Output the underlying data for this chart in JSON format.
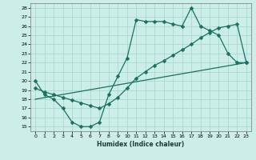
{
  "xlabel": "Humidex (Indice chaleur)",
  "bg_color": "#cceee8",
  "grid_color": "#aad8d2",
  "line_color": "#1a7060",
  "xlim": [
    -0.5,
    23.5
  ],
  "ylim": [
    14.5,
    28.5
  ],
  "xticks": [
    0,
    1,
    2,
    3,
    4,
    5,
    6,
    7,
    8,
    9,
    10,
    11,
    12,
    13,
    14,
    15,
    16,
    17,
    18,
    19,
    20,
    21,
    22,
    23
  ],
  "yticks": [
    15,
    16,
    17,
    18,
    19,
    20,
    21,
    22,
    23,
    24,
    25,
    26,
    27,
    28
  ],
  "line1_x": [
    0,
    1,
    2,
    3,
    4,
    5,
    6,
    7,
    8,
    9,
    10,
    11,
    12,
    13,
    14,
    15,
    16,
    17,
    18,
    19,
    20,
    21,
    22,
    23
  ],
  "line1_y": [
    20.0,
    18.5,
    18.0,
    17.0,
    15.5,
    15.0,
    15.0,
    15.5,
    18.5,
    20.5,
    22.5,
    26.7,
    26.5,
    26.5,
    26.5,
    26.2,
    26.0,
    28.0,
    26.0,
    25.5,
    25.0,
    23.0,
    22.0,
    22.0
  ],
  "line2_x": [
    0,
    1,
    2,
    3,
    4,
    5,
    6,
    7,
    8,
    9,
    10,
    11,
    12,
    13,
    14,
    15,
    16,
    17,
    18,
    19,
    20,
    21,
    22,
    23
  ],
  "line2_y": [
    19.2,
    18.8,
    18.5,
    18.2,
    17.9,
    17.6,
    17.3,
    17.0,
    17.5,
    18.2,
    19.2,
    20.3,
    21.0,
    21.7,
    22.2,
    22.8,
    23.4,
    24.0,
    24.7,
    25.3,
    25.8,
    26.0,
    26.2,
    22.0
  ],
  "line3_x": [
    0,
    23
  ],
  "line3_y": [
    18.0,
    22.0
  ],
  "marker": "D",
  "marker_size": 2.5,
  "lw": 0.9
}
